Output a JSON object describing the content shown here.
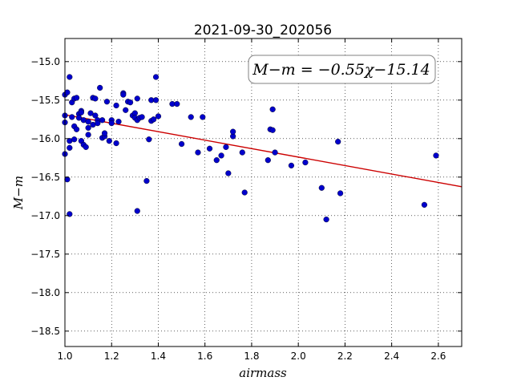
{
  "chart_data": {
    "type": "scatter",
    "title": "2021-09-30_202056",
    "xlabel": "airmass",
    "ylabel": "M−m",
    "xlim": [
      1.0,
      2.7
    ],
    "ylim": [
      -18.7,
      -14.7
    ],
    "y_inverted": true,
    "grid": true,
    "x_ticks": [
      1.0,
      1.2,
      1.4,
      1.6,
      1.8,
      2.0,
      2.2,
      2.4,
      2.6
    ],
    "x_tick_labels": [
      "1.0",
      "1.2",
      "1.4",
      "1.6",
      "1.8",
      "2.0",
      "2.2",
      "2.4",
      "2.6"
    ],
    "y_ticks": [
      -15.0,
      -15.5,
      -16.0,
      -16.5,
      -17.0,
      -17.5,
      -18.0,
      -18.5
    ],
    "y_tick_labels": [
      "−15.0",
      "−15.5",
      "−16.0",
      "−16.5",
      "−17.0",
      "−17.5",
      "−18.0",
      "−18.5"
    ],
    "annotation": "M−m = −0.55χ−15.14",
    "fit": {
      "slope": -0.55,
      "intercept": -15.14,
      "color": "#cc0000"
    },
    "marker_color": "#0000cc",
    "points": [
      {
        "x": 1.0,
        "y": -15.43
      },
      {
        "x": 1.0,
        "y": -15.7
      },
      {
        "x": 1.0,
        "y": -15.79
      },
      {
        "x": 1.0,
        "y": -16.2
      },
      {
        "x": 1.01,
        "y": -15.4
      },
      {
        "x": 1.01,
        "y": -16.53
      },
      {
        "x": 1.02,
        "y": -15.2
      },
      {
        "x": 1.02,
        "y": -16.98
      },
      {
        "x": 1.02,
        "y": -16.03
      },
      {
        "x": 1.02,
        "y": -16.12
      },
      {
        "x": 1.03,
        "y": -15.53
      },
      {
        "x": 1.03,
        "y": -15.72
      },
      {
        "x": 1.04,
        "y": -15.48
      },
      {
        "x": 1.04,
        "y": -16.01
      },
      {
        "x": 1.04,
        "y": -15.84
      },
      {
        "x": 1.05,
        "y": -15.47
      },
      {
        "x": 1.05,
        "y": -15.88
      },
      {
        "x": 1.06,
        "y": -15.68
      },
      {
        "x": 1.06,
        "y": -15.73
      },
      {
        "x": 1.07,
        "y": -15.64
      },
      {
        "x": 1.07,
        "y": -15.66
      },
      {
        "x": 1.07,
        "y": -16.03
      },
      {
        "x": 1.08,
        "y": -15.76
      },
      {
        "x": 1.08,
        "y": -16.08
      },
      {
        "x": 1.09,
        "y": -16.11
      },
      {
        "x": 1.1,
        "y": -15.78
      },
      {
        "x": 1.1,
        "y": -15.86
      },
      {
        "x": 1.1,
        "y": -15.95
      },
      {
        "x": 1.11,
        "y": -15.67
      },
      {
        "x": 1.12,
        "y": -15.82
      },
      {
        "x": 1.12,
        "y": -15.47
      },
      {
        "x": 1.13,
        "y": -15.48
      },
      {
        "x": 1.13,
        "y": -15.7
      },
      {
        "x": 1.14,
        "y": -15.76
      },
      {
        "x": 1.14,
        "y": -15.8
      },
      {
        "x": 1.15,
        "y": -15.34
      },
      {
        "x": 1.16,
        "y": -15.99
      },
      {
        "x": 1.16,
        "y": -15.76
      },
      {
        "x": 1.17,
        "y": -15.97
      },
      {
        "x": 1.17,
        "y": -15.93
      },
      {
        "x": 1.18,
        "y": -15.52
      },
      {
        "x": 1.19,
        "y": -16.03
      },
      {
        "x": 1.2,
        "y": -15.76
      },
      {
        "x": 1.2,
        "y": -15.8
      },
      {
        "x": 1.22,
        "y": -15.57
      },
      {
        "x": 1.22,
        "y": -16.06
      },
      {
        "x": 1.23,
        "y": -15.78
      },
      {
        "x": 1.25,
        "y": -15.41
      },
      {
        "x": 1.25,
        "y": -15.43
      },
      {
        "x": 1.26,
        "y": -15.63
      },
      {
        "x": 1.27,
        "y": -15.52
      },
      {
        "x": 1.28,
        "y": -15.53
      },
      {
        "x": 1.29,
        "y": -15.7
      },
      {
        "x": 1.3,
        "y": -15.67
      },
      {
        "x": 1.3,
        "y": -15.73
      },
      {
        "x": 1.31,
        "y": -15.48
      },
      {
        "x": 1.31,
        "y": -15.76
      },
      {
        "x": 1.31,
        "y": -16.94
      },
      {
        "x": 1.32,
        "y": -15.73
      },
      {
        "x": 1.33,
        "y": -15.72
      },
      {
        "x": 1.35,
        "y": -16.55
      },
      {
        "x": 1.36,
        "y": -16.01
      },
      {
        "x": 1.37,
        "y": -15.5
      },
      {
        "x": 1.37,
        "y": -15.77
      },
      {
        "x": 1.38,
        "y": -15.75
      },
      {
        "x": 1.39,
        "y": -15.5
      },
      {
        "x": 1.39,
        "y": -15.2
      },
      {
        "x": 1.4,
        "y": -15.71
      },
      {
        "x": 1.46,
        "y": -15.55
      },
      {
        "x": 1.48,
        "y": -15.55
      },
      {
        "x": 1.5,
        "y": -16.07
      },
      {
        "x": 1.54,
        "y": -15.72
      },
      {
        "x": 1.57,
        "y": -16.18
      },
      {
        "x": 1.59,
        "y": -15.72
      },
      {
        "x": 1.62,
        "y": -16.13
      },
      {
        "x": 1.65,
        "y": -16.28
      },
      {
        "x": 1.67,
        "y": -16.22
      },
      {
        "x": 1.69,
        "y": -16.11
      },
      {
        "x": 1.7,
        "y": -16.45
      },
      {
        "x": 1.72,
        "y": -15.97
      },
      {
        "x": 1.72,
        "y": -15.91
      },
      {
        "x": 1.76,
        "y": -16.18
      },
      {
        "x": 1.77,
        "y": -16.7
      },
      {
        "x": 1.87,
        "y": -16.28
      },
      {
        "x": 1.88,
        "y": -15.88
      },
      {
        "x": 1.89,
        "y": -15.62
      },
      {
        "x": 1.89,
        "y": -15.89
      },
      {
        "x": 1.9,
        "y": -16.18
      },
      {
        "x": 1.97,
        "y": -16.35
      },
      {
        "x": 2.03,
        "y": -16.31
      },
      {
        "x": 2.1,
        "y": -16.64
      },
      {
        "x": 2.12,
        "y": -17.05
      },
      {
        "x": 2.17,
        "y": -16.04
      },
      {
        "x": 2.18,
        "y": -16.71
      },
      {
        "x": 2.54,
        "y": -16.86
      },
      {
        "x": 2.59,
        "y": -16.22
      }
    ]
  }
}
